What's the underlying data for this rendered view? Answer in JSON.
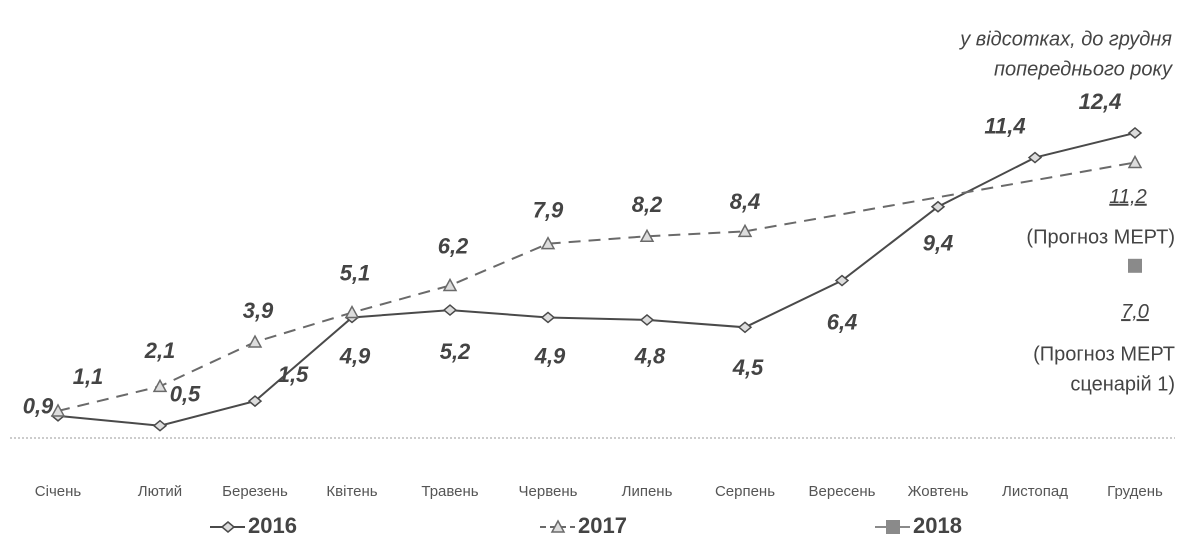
{
  "chart_data": {
    "type": "line",
    "unit_note": [
      "у відсотках, до грудня",
      "попереднього року"
    ],
    "categories": [
      "Січень",
      "Лютий",
      "Березень",
      "Квітень",
      "Травень",
      "Червень",
      "Липень",
      "Серпень",
      "Вересень",
      "Жовтень",
      "Листопад",
      "Грудень"
    ],
    "series": [
      {
        "name": "2016",
        "color": "#4a4a4a",
        "marker": "diamond",
        "dash": false,
        "values": [
          0.9,
          0.5,
          1.5,
          4.9,
          5.2,
          4.9,
          4.8,
          4.5,
          6.4,
          9.4,
          11.4,
          12.4
        ],
        "value_labels": [
          "0,9",
          "0,5",
          "1,5",
          "4,9",
          "5,2",
          "4,9",
          "4,8",
          "4,5",
          "6,4",
          "9,4",
          "11,4",
          "12,4"
        ]
      },
      {
        "name": "2017",
        "color": "#6a6a6a",
        "marker": "triangle",
        "dash": true,
        "values": [
          1.1,
          2.1,
          3.9,
          5.1,
          6.2,
          7.9,
          8.2,
          8.4,
          null,
          null,
          null,
          11.2
        ],
        "value_labels": [
          "1,1",
          "2,1",
          "3,9",
          "5,1",
          "6,2",
          "7,9",
          "8,2",
          "8,4",
          null,
          null,
          null,
          "11,2"
        ]
      },
      {
        "name": "2018",
        "color": "#8a8a8a",
        "marker": "square",
        "dash": false,
        "values": [
          null,
          null,
          null,
          null,
          null,
          null,
          null,
          null,
          null,
          null,
          null,
          7.0
        ],
        "value_labels": [
          null,
          null,
          null,
          null,
          null,
          null,
          null,
          null,
          null,
          null,
          null,
          "7,0"
        ]
      }
    ],
    "forecast_2017_label": "(Прогноз МЕРТ)",
    "forecast_2018_label": [
      "(Прогноз МЕРТ",
      "сценарій 1)"
    ]
  }
}
